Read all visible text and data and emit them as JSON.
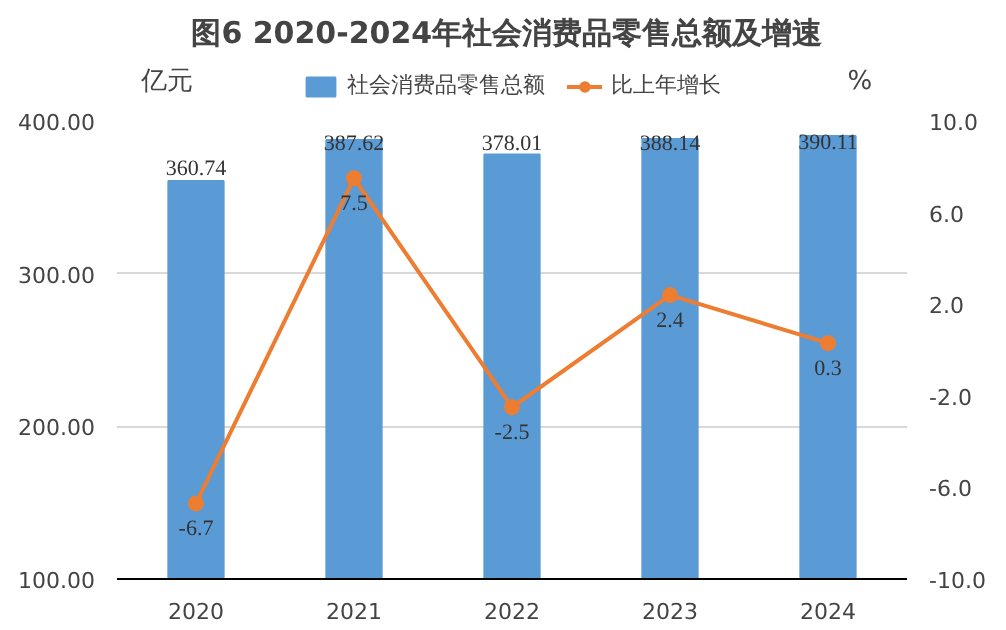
{
  "chart_data": {
    "type": "bar",
    "title": "图6  2020-2024年社会消费品零售总额及增速",
    "ylabel": "亿元",
    "y2label": "%",
    "categories": [
      "2020",
      "2021",
      "2022",
      "2023",
      "2024"
    ],
    "series": [
      {
        "name": "社会消费品零售总额",
        "color": "#5b9bd5",
        "values": [
          360.74,
          387.62,
          378.01,
          388.14,
          390.11
        ]
      },
      {
        "name": "比上年增长",
        "type": "line",
        "axis": "y2",
        "color": "#ed7d31",
        "marker": "circle",
        "values": [
          -6.7,
          7.5,
          -2.5,
          2.4,
          0.3
        ]
      }
    ],
    "ylim": [
      100,
      400
    ],
    "yticks": [
      {
        "value": 100,
        "label": "100.00"
      },
      {
        "value": 200,
        "label": "200.00"
      },
      {
        "value": 300,
        "label": "300.00"
      },
      {
        "value": 400,
        "label": "400.00"
      }
    ],
    "y2lim": [
      -10,
      10
    ],
    "y2ticks": [
      {
        "value": -10,
        "label": "-10.0"
      },
      {
        "value": -6,
        "label": "-6.0"
      },
      {
        "value": -2,
        "label": "-2.0"
      },
      {
        "value": 2,
        "label": "2.0"
      },
      {
        "value": 6,
        "label": "6.0"
      },
      {
        "value": 10,
        "label": "10.0"
      }
    ],
    "grid": "y",
    "legend": "top",
    "data_labels": true
  }
}
